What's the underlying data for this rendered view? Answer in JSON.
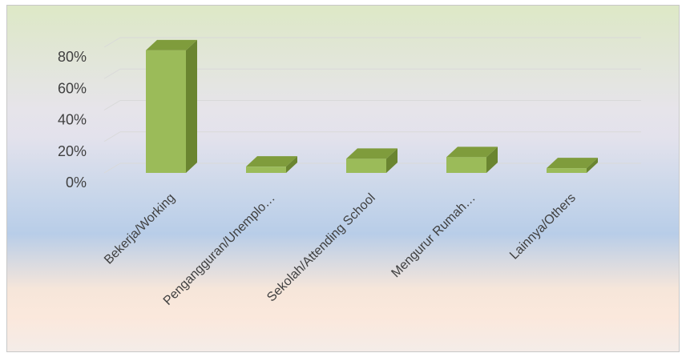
{
  "chart_data": {
    "type": "bar",
    "style": "3d-column",
    "categories": [
      "Bekerja/Working",
      "Pengangguran/Unemplo…",
      "Sekolah/Attending School",
      "Mengurur Rumah…",
      "Lainnya/Others"
    ],
    "values": [
      0.78,
      0.04,
      0.09,
      0.1,
      0.03
    ],
    "yticks": [
      "0%",
      "20%",
      "40%",
      "60%",
      "80%"
    ],
    "ylim": [
      0,
      0.8
    ],
    "grid": true,
    "legend": "none",
    "colors": {
      "bar_front": "#9bbb59",
      "bar_top": "#7f9c3c",
      "bar_side": "#6a8530",
      "grid": "#d9d9d9"
    }
  }
}
